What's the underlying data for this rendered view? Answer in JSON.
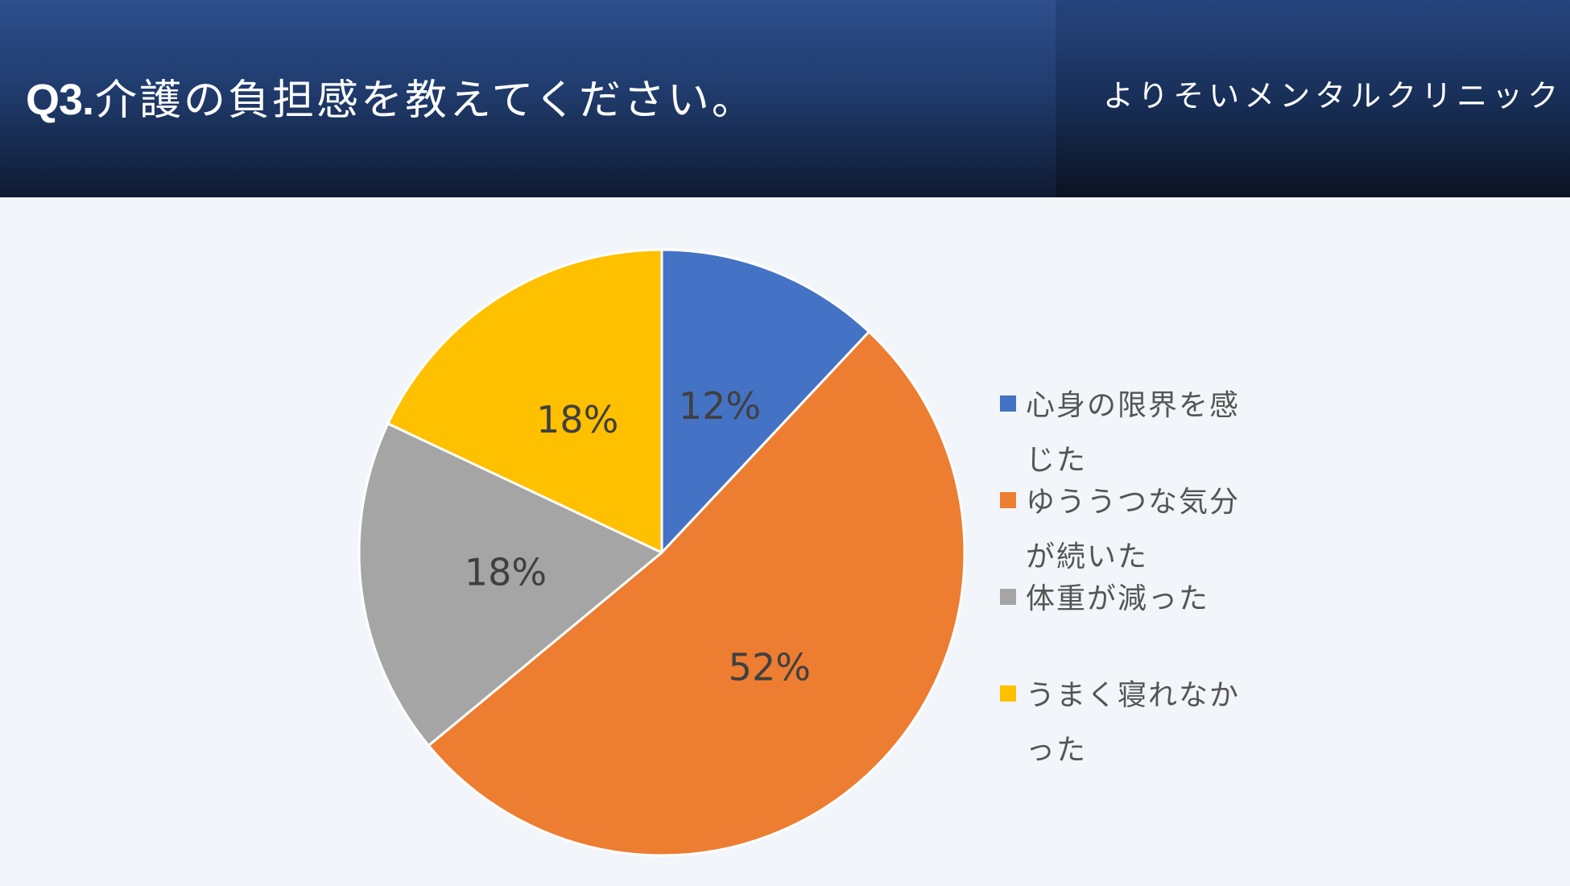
{
  "header": {
    "title_prefix": "Q3.",
    "title": "介護の負担感を教えてください。",
    "clinic": "よりそいメンタルクリニック"
  },
  "chart_data": {
    "type": "pie",
    "title": "",
    "slices": [
      {
        "label": "心身の限界を感じた",
        "value": 12,
        "display": "12%",
        "color": "#4472c4"
      },
      {
        "label": "ゆううつな気分が続いた",
        "value": 52,
        "display": "52%",
        "color": "#ed7d31"
      },
      {
        "label": "体重が減った",
        "value": 18,
        "display": "18%",
        "color": "#a5a5a5"
      },
      {
        "label": "うまく寝れなかった",
        "value": 18,
        "display": "18%",
        "color": "#ffc000"
      }
    ],
    "legend_position": "right"
  },
  "colors": {
    "background": "#f2f5f9",
    "header": "#203c6e",
    "label_text": "#404040",
    "legend_text": "#555555"
  }
}
